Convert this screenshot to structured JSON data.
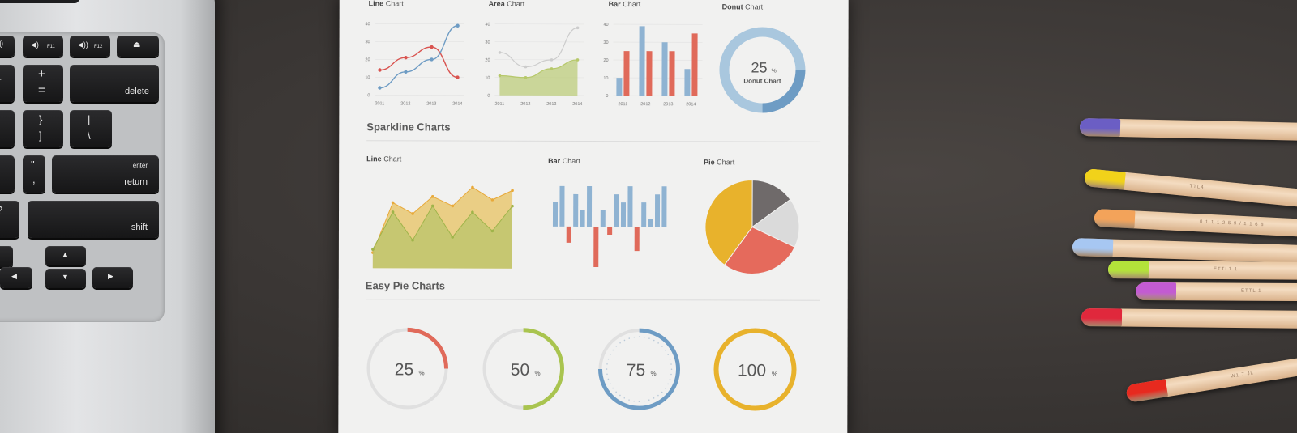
{
  "laptop": {
    "keys": {
      "f11": "F11",
      "f12": "F12",
      "delete": "delete",
      "enter": "enter",
      "return": "return",
      "shift": "shift",
      "plus": "+",
      "equals": "=",
      "brace_open": "{",
      "bracket_open": "[",
      "brace_close": "}",
      "bracket_close": "]",
      "pipe": "|",
      "backslash": "\\",
      "quote": "\"",
      "comma": ",",
      "question": "?",
      "slash": "/",
      "minus": "-",
      "underscore": "_"
    }
  },
  "paper": {
    "top_charts": [
      {
        "prefix": "Line",
        "suffix": " Chart"
      },
      {
        "prefix": "Area",
        "suffix": " Chart"
      },
      {
        "prefix": "Bar",
        "suffix": " Chart"
      },
      {
        "prefix": "Donut",
        "suffix": " Chart"
      }
    ],
    "year_labels": [
      "2011",
      "2012",
      "2013",
      "2014"
    ],
    "y_ticks": [
      "40",
      "30",
      "20",
      "10",
      "0"
    ],
    "donut_value": "25",
    "donut_unit": "%",
    "donut_label": "Donut Chart",
    "section_sparkline": "Sparkline Charts",
    "sparkline_titles": [
      {
        "prefix": "Line",
        "suffix": " Chart"
      },
      {
        "prefix": "Bar",
        "suffix": " Chart"
      },
      {
        "prefix": "Pie",
        "suffix": " Chart"
      }
    ],
    "section_easy_pie": "Easy Pie Charts",
    "easy_pies": [
      {
        "value": "25",
        "unit": "%",
        "fraction": 0.25,
        "color": "#e06a5a"
      },
      {
        "value": "50",
        "unit": "%",
        "fraction": 0.5,
        "color": "#a9c44f"
      },
      {
        "value": "75",
        "unit": "%",
        "fraction": 0.75,
        "color": "#6e9cc4"
      },
      {
        "value": "100",
        "unit": "%",
        "fraction": 1.0,
        "color": "#e8b22c"
      }
    ]
  },
  "pencils": {
    "printed_text": [
      "TTL4",
      "0 1 1 1 2 5 9 / 1 1 6 8",
      "ETTL1 1",
      "ETTL 1",
      "W1 7 JL"
    ],
    "colors": [
      "#6b5ec4",
      "#f1d21a",
      "#f3a35a",
      "#a7c7f2",
      "#b3e23a",
      "#c35bd2",
      "#e0283c",
      "#e72a1f"
    ]
  },
  "chart_data": [
    {
      "type": "line",
      "title": "Line Chart",
      "x": [
        "2011",
        "2012",
        "2013",
        "2014"
      ],
      "ylim": [
        0,
        40
      ],
      "series": [
        {
          "values": [
            14,
            21,
            27,
            10
          ],
          "color": "#d9534f"
        },
        {
          "values": [
            4,
            13,
            20,
            39
          ],
          "color": "#6e9cc4"
        }
      ]
    },
    {
      "type": "area",
      "title": "Area Chart",
      "x": [
        "2011",
        "2012",
        "2013",
        "2014"
      ],
      "ylim": [
        0,
        40
      ],
      "series": [
        {
          "values": [
            24,
            16,
            20,
            38
          ],
          "color": "#cccccc"
        },
        {
          "values": [
            11,
            10,
            15,
            20
          ],
          "color": "#b6c86a"
        }
      ]
    },
    {
      "type": "bar",
      "title": "Bar Chart",
      "categories": [
        "2011",
        "2012",
        "2013",
        "2014"
      ],
      "ylim": [
        0,
        40
      ],
      "series": [
        {
          "values": [
            10,
            39,
            30,
            15
          ],
          "color": "#8fb3d2"
        },
        {
          "values": [
            25,
            25,
            25,
            35
          ],
          "color": "#e06a5a"
        }
      ]
    },
    {
      "type": "pie",
      "title": "Donut Chart",
      "values": [
        25,
        75
      ],
      "colors": [
        "#6e9cc4",
        "#a9c7de"
      ]
    },
    {
      "type": "area",
      "title": "Line Chart",
      "series": [
        {
          "values": [
            10,
            42,
            35,
            46,
            40,
            52,
            44,
            50
          ],
          "color": "#e8c56a"
        },
        {
          "values": [
            12,
            36,
            18,
            40,
            20,
            36,
            24,
            40
          ],
          "color": "#b9c46b"
        }
      ]
    },
    {
      "type": "bar",
      "title": "Bar Chart",
      "values": [
        3,
        5,
        -2,
        4,
        2,
        5,
        -5,
        2,
        -1,
        4,
        3,
        5,
        -3,
        3,
        1,
        4,
        5
      ]
    },
    {
      "type": "pie",
      "title": "Pie Chart",
      "values": [
        15,
        17,
        28,
        40
      ],
      "colors": [
        "#6f6a6a",
        "#dadada",
        "#e56a5c",
        "#e8b22c"
      ]
    }
  ]
}
